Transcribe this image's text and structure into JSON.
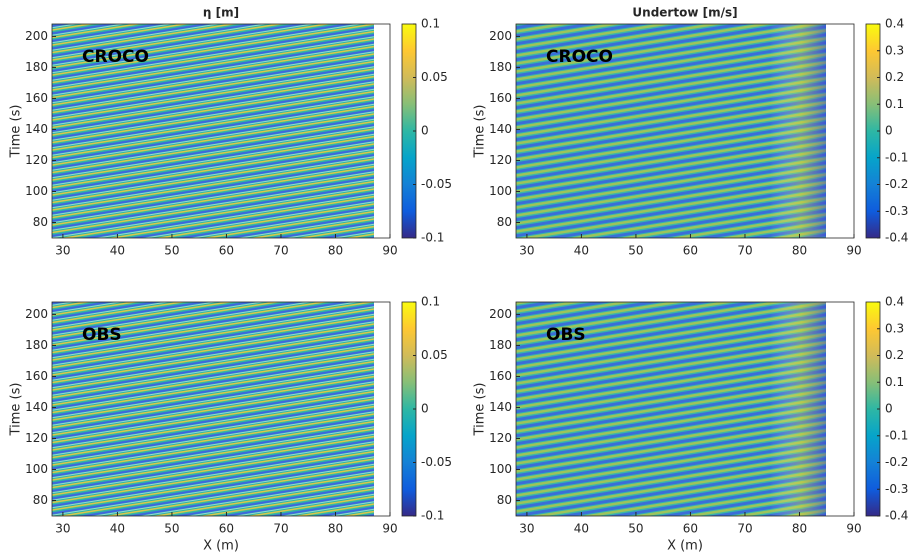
{
  "chart_data": [
    {
      "type": "heatmap",
      "title": "η [m]",
      "ylabel": "Time (s)",
      "annotation": "CROCO",
      "xlim": [
        28,
        90
      ],
      "xticks": [
        30,
        40,
        50,
        60,
        70,
        80,
        90
      ],
      "ylim": [
        70,
        208
      ],
      "yticks": [
        80,
        100,
        120,
        140,
        160,
        180,
        200
      ],
      "clim": [
        -0.1,
        0.1
      ],
      "cticks": [
        0.1,
        0.05,
        0,
        -0.05,
        -0.1
      ],
      "colormap": [
        "#352a87",
        "#0f5cdd",
        "#1481d6",
        "#06a4ca",
        "#2eb7a4",
        "#87bf77",
        "#d1bb59",
        "#fec832",
        "#f9fb0e"
      ]
    },
    {
      "type": "heatmap",
      "title": "Undertow [m/s]",
      "ylabel": "Time (s)",
      "annotation": "CROCO",
      "xlim": [
        28,
        90
      ],
      "xticks": [
        30,
        40,
        50,
        60,
        70,
        80,
        90
      ],
      "ylim": [
        70,
        208
      ],
      "yticks": [
        80,
        100,
        120,
        140,
        160,
        180,
        200
      ],
      "clim": [
        -0.4,
        0.4
      ],
      "cticks": [
        0.4,
        0.3,
        0.2,
        0.1,
        0,
        -0.1,
        -0.2,
        -0.3,
        -0.4
      ],
      "colormap": [
        "#352a87",
        "#0f5cdd",
        "#1481d6",
        "#06a4ca",
        "#2eb7a4",
        "#87bf77",
        "#d1bb59",
        "#fec832",
        "#f9fb0e"
      ]
    },
    {
      "type": "heatmap",
      "xlabel": "X (m)",
      "ylabel": "Time (s)",
      "annotation": "OBS",
      "xlim": [
        28,
        90
      ],
      "xticks": [
        30,
        40,
        50,
        60,
        70,
        80,
        90
      ],
      "ylim": [
        70,
        208
      ],
      "yticks": [
        80,
        100,
        120,
        140,
        160,
        180,
        200
      ],
      "clim": [
        -0.1,
        0.1
      ],
      "cticks": [
        0.1,
        0.05,
        0,
        -0.05,
        -0.1
      ],
      "colormap": [
        "#352a87",
        "#0f5cdd",
        "#1481d6",
        "#06a4ca",
        "#2eb7a4",
        "#87bf77",
        "#d1bb59",
        "#fec832",
        "#f9fb0e"
      ]
    },
    {
      "type": "heatmap",
      "xlabel": "X (m)",
      "ylabel": "Time (s)",
      "annotation": "OBS",
      "xlim": [
        28,
        90
      ],
      "xticks": [
        30,
        40,
        50,
        60,
        70,
        80,
        90
      ],
      "ylim": [
        70,
        208
      ],
      "yticks": [
        80,
        100,
        120,
        140,
        160,
        180,
        200
      ],
      "clim": [
        -0.4,
        0.4
      ],
      "cticks": [
        0.4,
        0.3,
        0.2,
        0.1,
        0,
        -0.1,
        -0.2,
        -0.3,
        -0.4
      ],
      "colormap": [
        "#352a87",
        "#0f5cdd",
        "#1481d6",
        "#06a4ca",
        "#2eb7a4",
        "#87bf77",
        "#d1bb59",
        "#fec832",
        "#f9fb0e"
      ]
    }
  ]
}
